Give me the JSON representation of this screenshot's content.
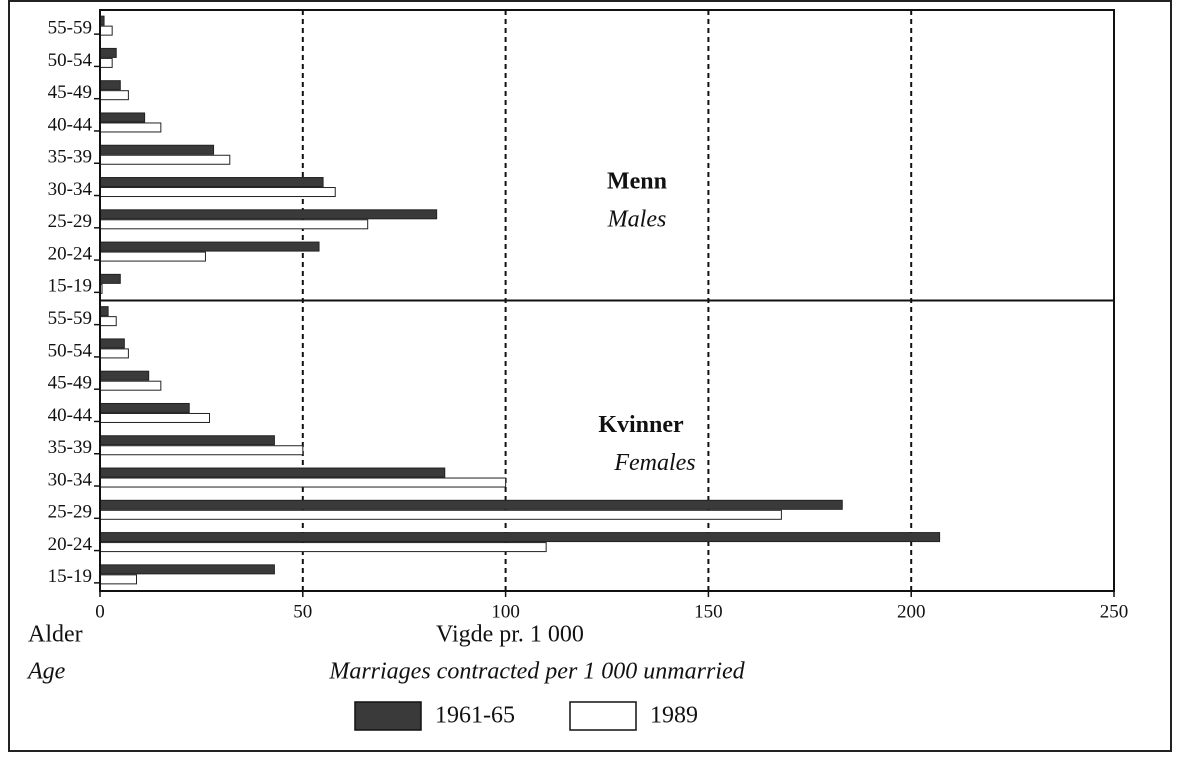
{
  "chart_data": {
    "type": "bar",
    "orientation": "horizontal",
    "x_label": "Vigde pr. 1 000",
    "x_label_en": "Marriages contracted per 1 000 unmarried",
    "y_label": "Alder",
    "y_label_en": "Age",
    "xlim": [
      0,
      250
    ],
    "xticks": [
      0,
      50,
      100,
      150,
      200,
      250
    ],
    "grid": true,
    "series": [
      {
        "name": "1961-65",
        "color": "#3a3a3a"
      },
      {
        "name": "1989",
        "color": "#ffffff"
      }
    ],
    "panels": [
      {
        "title": "Menn",
        "subtitle": "Males",
        "categories": [
          "55-59",
          "50-54",
          "45-49",
          "40-44",
          "35-39",
          "30-34",
          "25-29",
          "20-24",
          "15-19"
        ],
        "values": [
          [
            1,
            4,
            5,
            11,
            28,
            55,
            83,
            54,
            5
          ],
          [
            3,
            3,
            7,
            15,
            32,
            58,
            66,
            26,
            0.5
          ]
        ]
      },
      {
        "title": "Kvinner",
        "subtitle": "Females",
        "categories": [
          "55-59",
          "50-54",
          "45-49",
          "40-44",
          "35-39",
          "30-34",
          "25-29",
          "20-24",
          "15-19"
        ],
        "values": [
          [
            2,
            6,
            12,
            22,
            43,
            85,
            183,
            207,
            43
          ],
          [
            4,
            7,
            15,
            27,
            50,
            100,
            168,
            110,
            9
          ]
        ]
      }
    ]
  }
}
